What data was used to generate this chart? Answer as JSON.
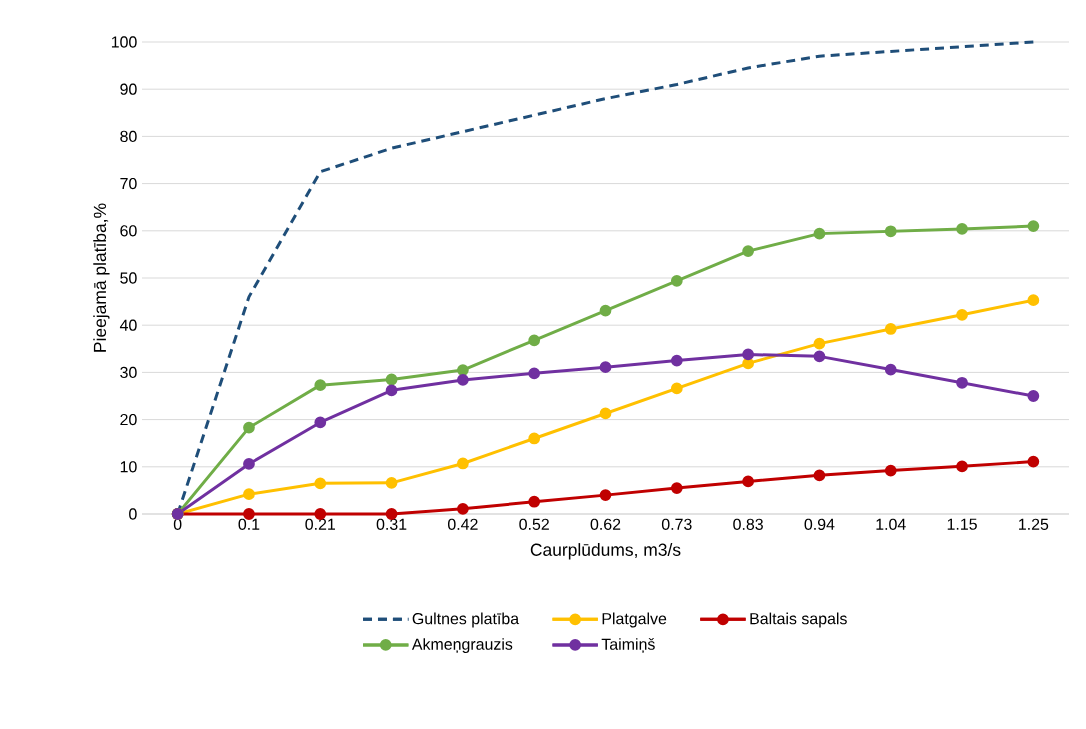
{
  "chart_data": {
    "type": "line",
    "xlabel": "Caurplūdums, m3/s",
    "ylabel": "Pieejamā platība,%",
    "categories": [
      "0",
      "0.1",
      "0.21",
      "0.31",
      "0.42",
      "0.52",
      "0.62",
      "0.73",
      "0.83",
      "0.94",
      "1.04",
      "1.15",
      "1.25"
    ],
    "series": [
      {
        "name": "Gultnes platība",
        "color": "#1f4e79",
        "line_style": "dashed",
        "marker": "none",
        "values": [
          0,
          46,
          72.5,
          77.5,
          81,
          84.5,
          88,
          91,
          94.5,
          97,
          98,
          99,
          100
        ]
      },
      {
        "name": "Platgalve",
        "color": "#ffc000",
        "values": [
          0,
          4.2,
          6.5,
          6.6,
          10.7,
          16.0,
          21.3,
          26.6,
          31.9,
          36.1,
          39.2,
          42.2,
          45.3
        ]
      },
      {
        "name": "Baltais sapals",
        "color": "#c00000",
        "values": [
          0,
          0,
          0,
          0,
          1.1,
          2.6,
          4.0,
          5.5,
          6.9,
          8.2,
          9.2,
          10.1,
          11.1
        ]
      },
      {
        "name": "Akmeņgrauzis",
        "color": "#70ad47",
        "values": [
          0,
          18.3,
          27.3,
          28.5,
          30.5,
          36.8,
          43.1,
          49.4,
          55.7,
          59.4,
          59.9,
          60.4,
          61.0
        ]
      },
      {
        "name": "Taimiņš",
        "color": "#7030a0",
        "values": [
          0,
          10.6,
          19.4,
          26.2,
          28.4,
          29.8,
          31.1,
          32.5,
          33.8,
          33.4,
          30.6,
          27.8,
          25.0
        ]
      }
    ],
    "ylim": [
      0,
      100
    ],
    "yticks": [
      0,
      10,
      20,
      30,
      40,
      50,
      60,
      70,
      80,
      90,
      100
    ],
    "grid": "y",
    "legend": "bottom",
    "marker": "circle",
    "line_style": "solid"
  }
}
